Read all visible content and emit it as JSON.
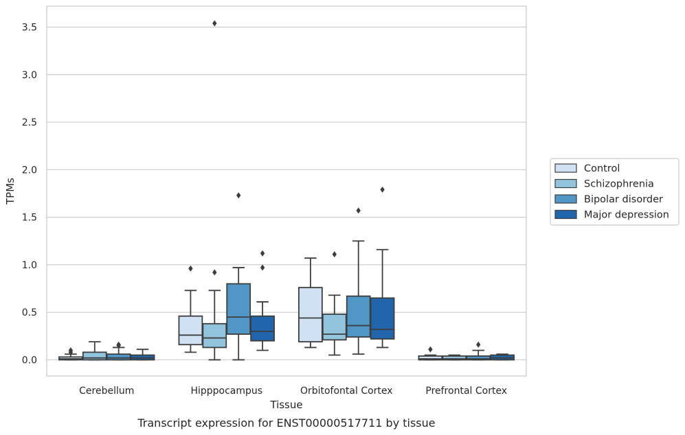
{
  "chart_data": {
    "type": "boxplot",
    "caption": "Transcript expression for ENST00000517711 by tissue",
    "xlabel": "Tissue",
    "ylabel": "TPMs",
    "ylim": [
      -0.17,
      3.72
    ],
    "yticks": [
      0.0,
      0.5,
      1.0,
      1.5,
      2.0,
      2.5,
      3.0,
      3.5
    ],
    "ytick_labels": [
      "0.0",
      "0.5",
      "1.0",
      "1.5",
      "2.0",
      "2.5",
      "3.0",
      "3.5"
    ],
    "grid": "horizontal",
    "legend_position": "right",
    "categories": [
      "Cerebellum",
      "Hipppocampus",
      "Orbitofontal Cortex",
      "Prefrontal Cortex"
    ],
    "series": [
      {
        "name": "Control",
        "color": "#cfe1f2",
        "boxes": [
          {
            "whislo": 0.0,
            "q1": 0.0,
            "med": 0.01,
            "q3": 0.03,
            "whishi": 0.06,
            "fliers": [
              0.08,
              0.1
            ]
          },
          {
            "whislo": 0.08,
            "q1": 0.16,
            "med": 0.26,
            "q3": 0.46,
            "whishi": 0.73,
            "fliers": [
              0.96
            ]
          },
          {
            "whislo": 0.13,
            "q1": 0.19,
            "med": 0.44,
            "q3": 0.76,
            "whishi": 1.07,
            "fliers": []
          },
          {
            "whislo": 0.0,
            "q1": 0.0,
            "med": 0.01,
            "q3": 0.04,
            "whishi": 0.05,
            "fliers": [
              0.11
            ]
          }
        ]
      },
      {
        "name": "Schizophrenia",
        "color": "#93c4de",
        "boxes": [
          {
            "whislo": 0.0,
            "q1": 0.0,
            "med": 0.02,
            "q3": 0.08,
            "whishi": 0.19,
            "fliers": []
          },
          {
            "whislo": 0.0,
            "q1": 0.13,
            "med": 0.23,
            "q3": 0.38,
            "whishi": 0.73,
            "fliers": [
              0.92,
              3.54
            ]
          },
          {
            "whislo": 0.05,
            "q1": 0.21,
            "med": 0.27,
            "q3": 0.48,
            "whishi": 0.68,
            "fliers": [
              1.11
            ]
          },
          {
            "whislo": 0.0,
            "q1": 0.0,
            "med": 0.01,
            "q3": 0.04,
            "whishi": 0.05,
            "fliers": []
          }
        ]
      },
      {
        "name": "Bipolar disorder",
        "color": "#5097c7",
        "boxes": [
          {
            "whislo": 0.0,
            "q1": 0.0,
            "med": 0.02,
            "q3": 0.06,
            "whishi": 0.13,
            "fliers": [
              0.15,
              0.16
            ]
          },
          {
            "whislo": 0.0,
            "q1": 0.27,
            "med": 0.45,
            "q3": 0.8,
            "whishi": 0.97,
            "fliers": [
              1.73
            ]
          },
          {
            "whislo": 0.06,
            "q1": 0.24,
            "med": 0.36,
            "q3": 0.67,
            "whishi": 1.25,
            "fliers": [
              1.57
            ]
          },
          {
            "whislo": 0.0,
            "q1": 0.0,
            "med": 0.01,
            "q3": 0.04,
            "whishi": 0.1,
            "fliers": [
              0.16
            ]
          }
        ]
      },
      {
        "name": "Major depression",
        "color": "#2166ac",
        "boxes": [
          {
            "whislo": 0.0,
            "q1": 0.0,
            "med": 0.02,
            "q3": 0.05,
            "whishi": 0.11,
            "fliers": []
          },
          {
            "whislo": 0.1,
            "q1": 0.2,
            "med": 0.3,
            "q3": 0.46,
            "whishi": 0.61,
            "fliers": [
              0.97,
              1.12
            ]
          },
          {
            "whislo": 0.13,
            "q1": 0.22,
            "med": 0.32,
            "q3": 0.65,
            "whishi": 1.16,
            "fliers": [
              1.79
            ]
          },
          {
            "whislo": 0.0,
            "q1": 0.0,
            "med": 0.02,
            "q3": 0.05,
            "whishi": 0.06,
            "fliers": []
          }
        ]
      }
    ]
  }
}
